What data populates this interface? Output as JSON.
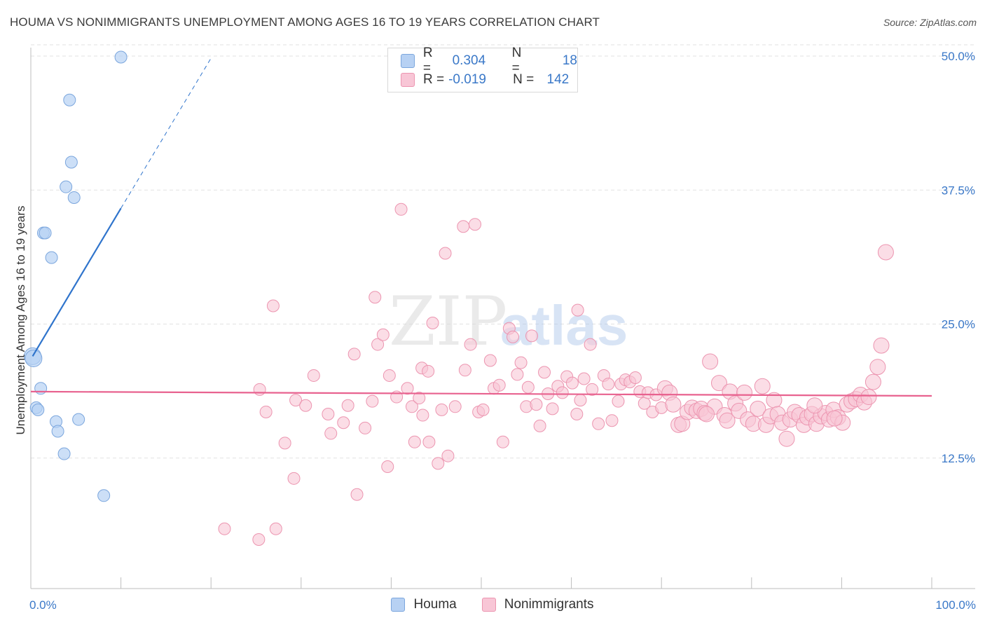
{
  "title": "HOUMA VS NONIMMIGRANTS UNEMPLOYMENT AMONG AGES 16 TO 19 YEARS CORRELATION CHART",
  "source": "Source: ZipAtlas.com",
  "watermark": {
    "zip": "ZIP",
    "atlas": "atlas"
  },
  "legend": {
    "r_label": "R =",
    "n_label": "N =",
    "houma": {
      "r": "0.304",
      "n": "18"
    },
    "nonimmigrants": {
      "r": "-0.019",
      "n": "142"
    }
  },
  "bottom_legend": {
    "houma": "Houma",
    "nonimmigrants": "Nonimmigrants"
  },
  "colors": {
    "houma_fill": "#b7d1f3",
    "houma_stroke": "#7ba6dd",
    "houma_line": "#2f74cc",
    "non_fill": "#f8c6d6",
    "non_stroke": "#ec95b0",
    "non_line": "#e8628f",
    "accent_text": "#3a78c8",
    "grid": "#e2e2e2"
  },
  "chart_data": {
    "type": "scatter",
    "xlabel": "",
    "ylabel": "Unemployment Among Ages 16 to 19 years",
    "xlim": [
      0,
      100
    ],
    "ylim": [
      0,
      52
    ],
    "x_tick_labels": [
      "0.0%",
      "100.0%"
    ],
    "y_ticks": [
      12.5,
      25.0,
      37.5,
      50.0
    ],
    "y_tick_labels": [
      "12.5%",
      "25.0%",
      "37.5%",
      "50.0%"
    ],
    "grid": "horizontal dashed",
    "legend_position": "top-center and bottom",
    "series": [
      {
        "name": "Houma",
        "points": [
          [
            0.2,
            22.0
          ],
          [
            0.3,
            21.8
          ],
          [
            0.6,
            17.2
          ],
          [
            0.8,
            17.0
          ],
          [
            1.1,
            19.0
          ],
          [
            1.4,
            33.5
          ],
          [
            1.6,
            33.5
          ],
          [
            2.3,
            31.2
          ],
          [
            2.8,
            15.9
          ],
          [
            3.0,
            15.0
          ],
          [
            3.7,
            12.9
          ],
          [
            3.9,
            37.8
          ],
          [
            4.3,
            45.9
          ],
          [
            4.5,
            40.1
          ],
          [
            4.8,
            36.8
          ],
          [
            5.3,
            16.1
          ],
          [
            8.1,
            9.0
          ],
          [
            10.0,
            49.9
          ]
        ],
        "trend": {
          "x0": 0.2,
          "y0": 22.0,
          "x1": 10.0,
          "y1": 35.8,
          "dashed_to": [
            20.0,
            49.8
          ]
        }
      },
      {
        "name": "Nonimmigrants",
        "points": [
          [
            21.5,
            5.9
          ],
          [
            25.3,
            4.9
          ],
          [
            27.2,
            5.9
          ],
          [
            25.4,
            18.9
          ],
          [
            26.1,
            16.8
          ],
          [
            26.9,
            26.7
          ],
          [
            28.2,
            13.9
          ],
          [
            29.2,
            10.6
          ],
          [
            29.4,
            17.9
          ],
          [
            30.5,
            17.4
          ],
          [
            31.4,
            20.2
          ],
          [
            33.0,
            16.6
          ],
          [
            33.3,
            14.8
          ],
          [
            34.7,
            15.8
          ],
          [
            35.2,
            17.4
          ],
          [
            36.2,
            9.1
          ],
          [
            35.9,
            22.2
          ],
          [
            37.1,
            15.3
          ],
          [
            37.9,
            17.8
          ],
          [
            38.2,
            27.5
          ],
          [
            38.5,
            23.1
          ],
          [
            39.1,
            24.0
          ],
          [
            39.6,
            11.7
          ],
          [
            39.8,
            20.2
          ],
          [
            40.6,
            18.2
          ],
          [
            41.1,
            35.7
          ],
          [
            41.8,
            19.0
          ],
          [
            42.3,
            17.3
          ],
          [
            42.6,
            14.0
          ],
          [
            43.1,
            18.1
          ],
          [
            43.4,
            20.9
          ],
          [
            43.5,
            16.5
          ],
          [
            44.1,
            20.6
          ],
          [
            44.2,
            14.0
          ],
          [
            44.6,
            25.1
          ],
          [
            45.2,
            12.0
          ],
          [
            45.6,
            17.0
          ],
          [
            46.0,
            31.6
          ],
          [
            46.3,
            12.7
          ],
          [
            47.1,
            17.3
          ],
          [
            48.0,
            34.1
          ],
          [
            48.2,
            20.7
          ],
          [
            48.8,
            23.1
          ],
          [
            49.3,
            34.3
          ],
          [
            49.7,
            16.8
          ],
          [
            50.2,
            17.0
          ],
          [
            51.0,
            21.6
          ],
          [
            51.4,
            19.0
          ],
          [
            52.0,
            19.3
          ],
          [
            52.4,
            14.0
          ],
          [
            53.1,
            24.6
          ],
          [
            53.5,
            23.8
          ],
          [
            54.0,
            20.3
          ],
          [
            54.4,
            21.4
          ],
          [
            55.0,
            17.3
          ],
          [
            55.2,
            19.1
          ],
          [
            55.6,
            23.9
          ],
          [
            56.1,
            17.5
          ],
          [
            56.5,
            15.5
          ],
          [
            57.0,
            20.5
          ],
          [
            57.4,
            18.5
          ],
          [
            57.9,
            17.1
          ],
          [
            58.5,
            19.2
          ],
          [
            59.0,
            18.6
          ],
          [
            59.5,
            20.1
          ],
          [
            60.1,
            19.5
          ],
          [
            60.6,
            16.6
          ],
          [
            61.0,
            17.9
          ],
          [
            61.4,
            19.9
          ],
          [
            62.1,
            23.1
          ],
          [
            62.3,
            18.9
          ],
          [
            63.0,
            15.7
          ],
          [
            63.6,
            20.2
          ],
          [
            64.1,
            19.4
          ],
          [
            64.5,
            16.0
          ],
          [
            65.2,
            17.8
          ],
          [
            65.5,
            19.4
          ],
          [
            66.0,
            19.8
          ],
          [
            66.5,
            19.6
          ],
          [
            67.1,
            20.0
          ],
          [
            67.6,
            18.7
          ],
          [
            68.1,
            17.6
          ],
          [
            68.5,
            18.6
          ],
          [
            69.0,
            16.8
          ],
          [
            69.4,
            18.4
          ],
          [
            70.0,
            17.2
          ],
          [
            70.4,
            19.0
          ],
          [
            70.9,
            18.6
          ],
          [
            71.3,
            17.5
          ],
          [
            71.9,
            15.6
          ],
          [
            72.3,
            15.7
          ],
          [
            72.9,
            16.8
          ],
          [
            73.4,
            17.2
          ],
          [
            73.9,
            16.9
          ],
          [
            74.4,
            17.1
          ],
          [
            74.8,
            16.7
          ],
          [
            75.4,
            21.5
          ],
          [
            75.9,
            17.3
          ],
          [
            76.4,
            19.5
          ],
          [
            77.0,
            16.5
          ],
          [
            77.6,
            18.7
          ],
          [
            78.2,
            17.6
          ],
          [
            78.6,
            16.9
          ],
          [
            79.2,
            18.6
          ],
          [
            79.6,
            16.1
          ],
          [
            80.2,
            15.7
          ],
          [
            80.7,
            17.1
          ],
          [
            81.2,
            19.2
          ],
          [
            81.6,
            15.6
          ],
          [
            82.1,
            16.4
          ],
          [
            82.5,
            17.9
          ],
          [
            82.9,
            16.6
          ],
          [
            83.4,
            15.8
          ],
          [
            83.9,
            14.3
          ],
          [
            84.3,
            16.1
          ],
          [
            84.8,
            16.8
          ],
          [
            85.3,
            16.5
          ],
          [
            85.8,
            15.6
          ],
          [
            86.2,
            16.3
          ],
          [
            86.7,
            16.6
          ],
          [
            87.2,
            15.7
          ],
          [
            87.7,
            16.4
          ],
          [
            88.2,
            16.7
          ],
          [
            88.6,
            16.1
          ],
          [
            89.1,
            17.0
          ],
          [
            89.6,
            16.3
          ],
          [
            90.1,
            15.8
          ],
          [
            90.6,
            17.5
          ],
          [
            91.1,
            17.8
          ],
          [
            91.6,
            18.0
          ],
          [
            92.1,
            18.4
          ],
          [
            92.5,
            17.7
          ],
          [
            93.0,
            18.2
          ],
          [
            93.5,
            19.6
          ],
          [
            94.0,
            21.0
          ],
          [
            94.4,
            23.0
          ],
          [
            94.9,
            31.7
          ],
          [
            60.7,
            26.3
          ],
          [
            75.0,
            16.6
          ],
          [
            87.0,
            17.4
          ],
          [
            89.2,
            16.2
          ],
          [
            77.3,
            16.0
          ]
        ],
        "trend": {
          "x0": 0,
          "y0": 18.7,
          "x1": 100,
          "y1": 18.3
        }
      }
    ]
  }
}
